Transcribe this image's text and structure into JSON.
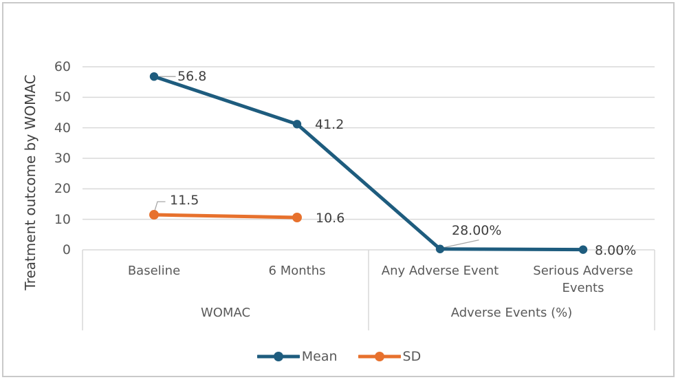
{
  "figure": {
    "background": "#FFFFFF",
    "border_color": "#C9C9C9"
  },
  "chart_data": {
    "type": "line",
    "title": "",
    "xlabel": "",
    "ylabel": "Treatment outcome by WOMAC",
    "ylim": [
      0,
      60
    ],
    "yticks": [
      0,
      10,
      20,
      30,
      40,
      50,
      60
    ],
    "grid": true,
    "legend_position": "bottom",
    "categories": [
      "Baseline",
      "6 Months",
      "Any Adverse Event",
      "Serious Adverse Events"
    ],
    "category_groups": [
      {
        "label": "WOMAC",
        "span": [
          0,
          1
        ]
      },
      {
        "label": "Adverse Events (%)",
        "span": [
          2,
          3
        ]
      }
    ],
    "series": [
      {
        "name": "Mean",
        "color": "#1E5C7E",
        "marker": "circle",
        "values": [
          56.8,
          41.2,
          0.28,
          0.08
        ],
        "data_labels": [
          "56.8",
          "41.2",
          "28.00%",
          "8.00%"
        ]
      },
      {
        "name": "SD",
        "color": "#E7712D",
        "marker": "circle",
        "values": [
          11.5,
          10.6,
          null,
          null
        ],
        "data_labels": [
          "11.5",
          "10.6",
          null,
          null
        ]
      }
    ],
    "gridline_color": "#D9D9D9",
    "axis_text_color": "#595959",
    "data_label_color": "#3F3F3F",
    "leader_line_color": "#A6A6A6"
  },
  "legend": {
    "items": [
      {
        "label": "Mean",
        "color": "#1E5C7E"
      },
      {
        "label": "SD",
        "color": "#E7712D"
      }
    ]
  }
}
